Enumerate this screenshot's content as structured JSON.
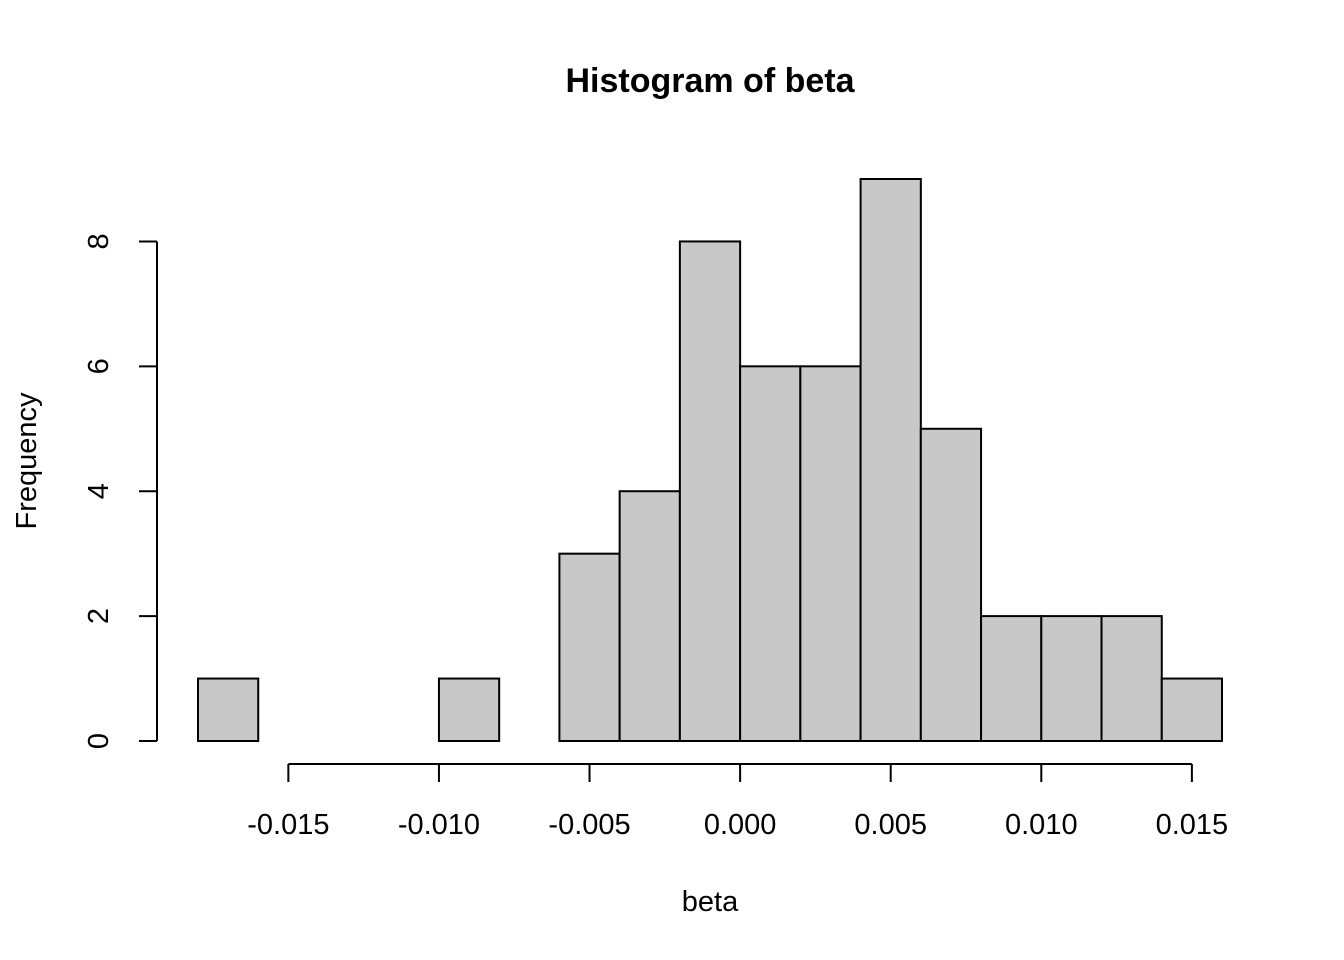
{
  "chart_data": {
    "type": "bar",
    "title": "Histogram of beta",
    "xlabel": "beta",
    "ylabel": "Frequency",
    "bin_edges": [
      -0.018,
      -0.016,
      -0.014,
      -0.012,
      -0.01,
      -0.008,
      -0.006,
      -0.004,
      -0.002,
      0.0,
      0.002,
      0.004,
      0.006,
      0.008,
      0.01,
      0.012,
      0.014,
      0.016
    ],
    "values": [
      1,
      0,
      0,
      0,
      1,
      0,
      3,
      4,
      8,
      6,
      6,
      9,
      5,
      2,
      2,
      2,
      1
    ],
    "x_ticks": [
      -0.015,
      -0.01,
      -0.005,
      0.0,
      0.005,
      0.01,
      0.015
    ],
    "x_tick_labels": [
      "-0.015",
      "-0.010",
      "-0.005",
      "0.000",
      "0.005",
      "0.010",
      "0.015"
    ],
    "y_ticks": [
      0,
      2,
      4,
      6,
      8
    ],
    "y_tick_labels": [
      "0",
      "2",
      "4",
      "6",
      "8"
    ],
    "xlim": [
      -0.018,
      0.016
    ],
    "ylim": [
      0,
      9
    ],
    "bar_color": "#c8c8c8",
    "grid": false,
    "legend": "none"
  }
}
